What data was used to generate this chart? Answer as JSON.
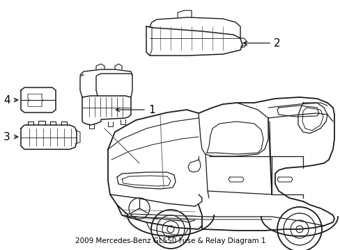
{
  "title": "2009 Mercedes-Benz GL550 Fuse & Relay Diagram 1",
  "background_color": "#ffffff",
  "line_color": "#1a1a1a",
  "text_color": "#000000",
  "figsize": [
    4.89,
    3.6
  ],
  "dpi": 100
}
